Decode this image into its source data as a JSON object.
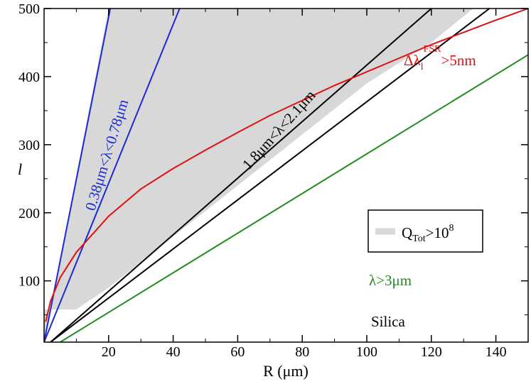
{
  "chart_data": {
    "type": "line",
    "xlabel": "R (μm)",
    "ylabel": "l",
    "xlim": [
      0,
      150
    ],
    "ylim": [
      10,
      500
    ],
    "xticks": [
      20,
      40,
      60,
      80,
      100,
      120,
      140
    ],
    "yticks": [
      100,
      200,
      300,
      400,
      500
    ],
    "shaded_region": {
      "name": "Q_Tot>10^8",
      "color": "#d8d8d8",
      "upper": {
        "x": [
          0,
          20,
          40,
          60,
          80,
          100,
          120,
          133
        ],
        "y": [
          10,
          500,
          500,
          500,
          500,
          500,
          500,
          500
        ]
      },
      "lower": {
        "x": [
          10,
          20,
          40,
          60,
          80,
          100,
          120,
          133
        ],
        "y": [
          58,
          90,
          165,
          240,
          315,
          390,
          450,
          500
        ]
      },
      "left_boundary": {
        "x": [
          0,
          10
        ],
        "y": [
          58,
          58
        ]
      }
    },
    "series": [
      {
        "name": "lambda_0.38",
        "color": "#1a2bd6",
        "x": [
          0,
          20.5
        ],
        "y": [
          10,
          500
        ]
      },
      {
        "name": "lambda_0.78",
        "color": "#1a2bd6",
        "x": [
          0,
          42
        ],
        "y": [
          10,
          500
        ]
      },
      {
        "name": "lambda_1.8",
        "color": "#000000",
        "x": [
          2,
          120
        ],
        "y": [
          10,
          500
        ]
      },
      {
        "name": "lambda_2.1",
        "color": "#000000",
        "x": [
          2,
          138
        ],
        "y": [
          10,
          500
        ]
      },
      {
        "name": "lambda_3",
        "color": "#1e8c1e",
        "x": [
          5,
          150
        ],
        "y": [
          10,
          432
        ]
      },
      {
        "name": "dlambda_FSR",
        "color": "#e01010",
        "x": [
          0.5,
          2,
          5,
          10,
          20,
          30,
          40,
          50,
          60,
          70,
          80,
          90,
          100,
          110,
          120,
          130,
          140,
          150
        ],
        "y": [
          40,
          70,
          105,
          142,
          195,
          235,
          265,
          292,
          318,
          343,
          365,
          387,
          407,
          427,
          447,
          465,
          483,
          500
        ]
      }
    ],
    "legend": {
      "label_main": "Q",
      "label_sub": "Tot",
      "label_rest": ">10",
      "label_sup": "8",
      "position": "right"
    },
    "annotations": {
      "blue": {
        "text": "0.38μm<λ<0.78μm",
        "color": "#1a2bd6"
      },
      "black": {
        "text": "1.8μm<λ<2.1μm",
        "color": "#000000"
      },
      "red": {
        "main": "Δλ",
        "sub": "l",
        "sup": "FSR",
        "rest": ">5nm",
        "color": "#e01010"
      },
      "green": {
        "text": "λ>3μm",
        "color": "#1e8c1e"
      },
      "material": {
        "text": "Silica",
        "color": "#000000"
      }
    }
  }
}
